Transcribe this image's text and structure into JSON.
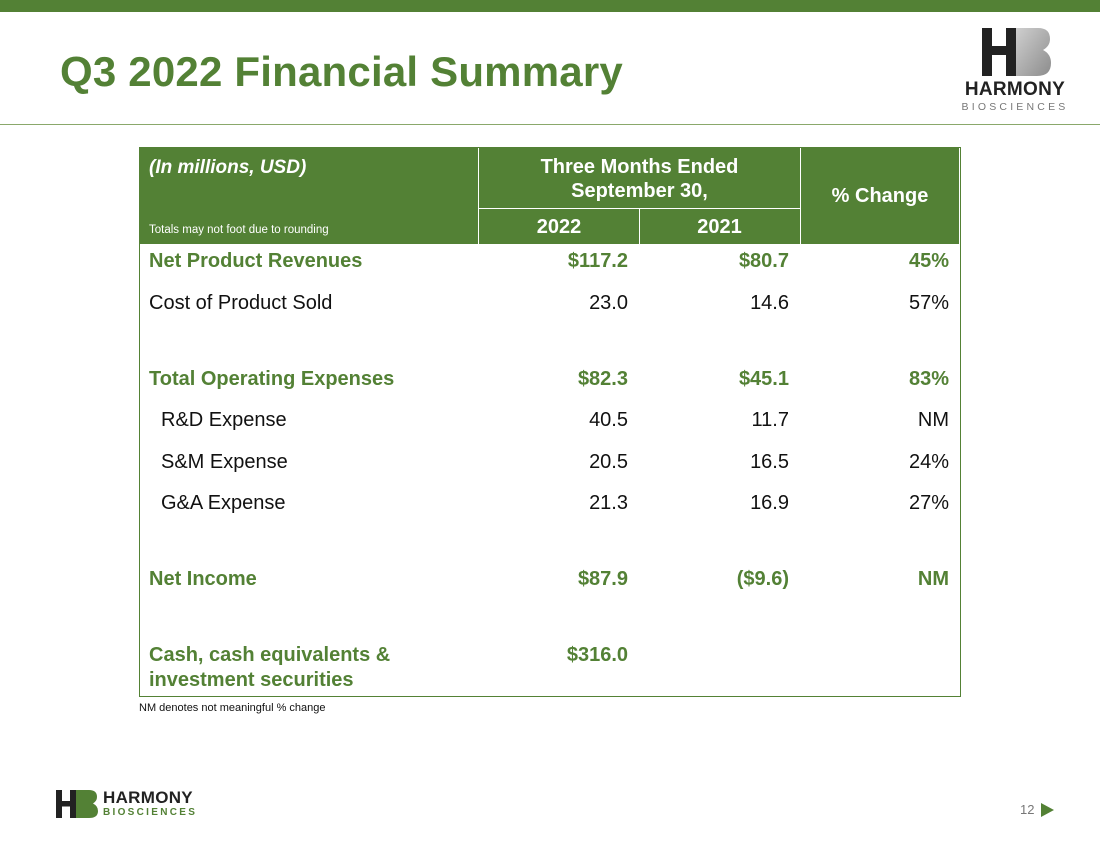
{
  "slide": {
    "title": "Q3 2022 Financial Summary",
    "page_number": "12"
  },
  "logo": {
    "name": "HARMONY",
    "subtitle": "BIOSCIENCES"
  },
  "table": {
    "unit_label": "(In millions, USD)",
    "rounding_note": "Totals may not foot due to rounding",
    "period_header": "Three Months Ended",
    "period_header_2": "September 30,",
    "col_2022": "2022",
    "col_2021": "2021",
    "col_change": "% Change",
    "rows": [
      {
        "label": "Net Product Revenues",
        "v2022": "$117.2",
        "v2021": "$80.7",
        "change": "45%"
      },
      {
        "label": "Cost of Product Sold",
        "v2022": "23.0",
        "v2021": "14.6",
        "change": "57%"
      },
      {
        "label": "Total Operating Expenses",
        "v2022": "$82.3",
        "v2021": "$45.1",
        "change": "83%"
      },
      {
        "label": "R&D Expense",
        "v2022": "40.5",
        "v2021": "11.7",
        "change": "NM"
      },
      {
        "label": "S&M Expense",
        "v2022": "20.5",
        "v2021": "16.5",
        "change": "24%"
      },
      {
        "label": "G&A Expense",
        "v2022": "21.3",
        "v2021": "16.9",
        "change": "27%"
      },
      {
        "label": "Net Income",
        "v2022": "$87.9",
        "v2021": "($9.6)",
        "change": "NM"
      },
      {
        "label": "Cash, cash equivalents &",
        "label_2": "investment securities",
        "v2022": "$316.0"
      }
    ]
  },
  "footnote": "NM denotes not meaningful % change",
  "colors": {
    "brand_green": "#538135",
    "text_dark": "#111111"
  }
}
